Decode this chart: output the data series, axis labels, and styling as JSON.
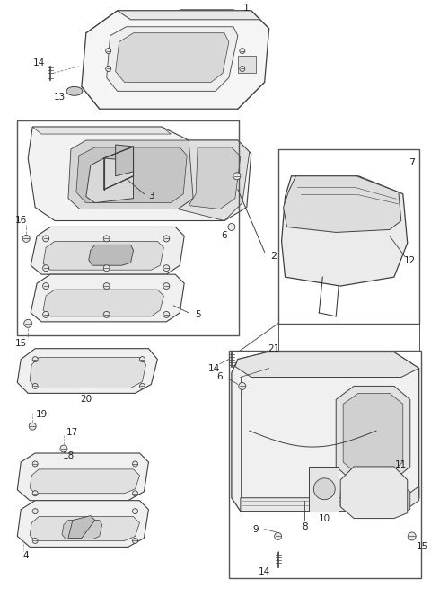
{
  "bg_color": "#ffffff",
  "line_color": "#404040",
  "fig_width": 4.8,
  "fig_height": 6.64,
  "dpi": 100
}
